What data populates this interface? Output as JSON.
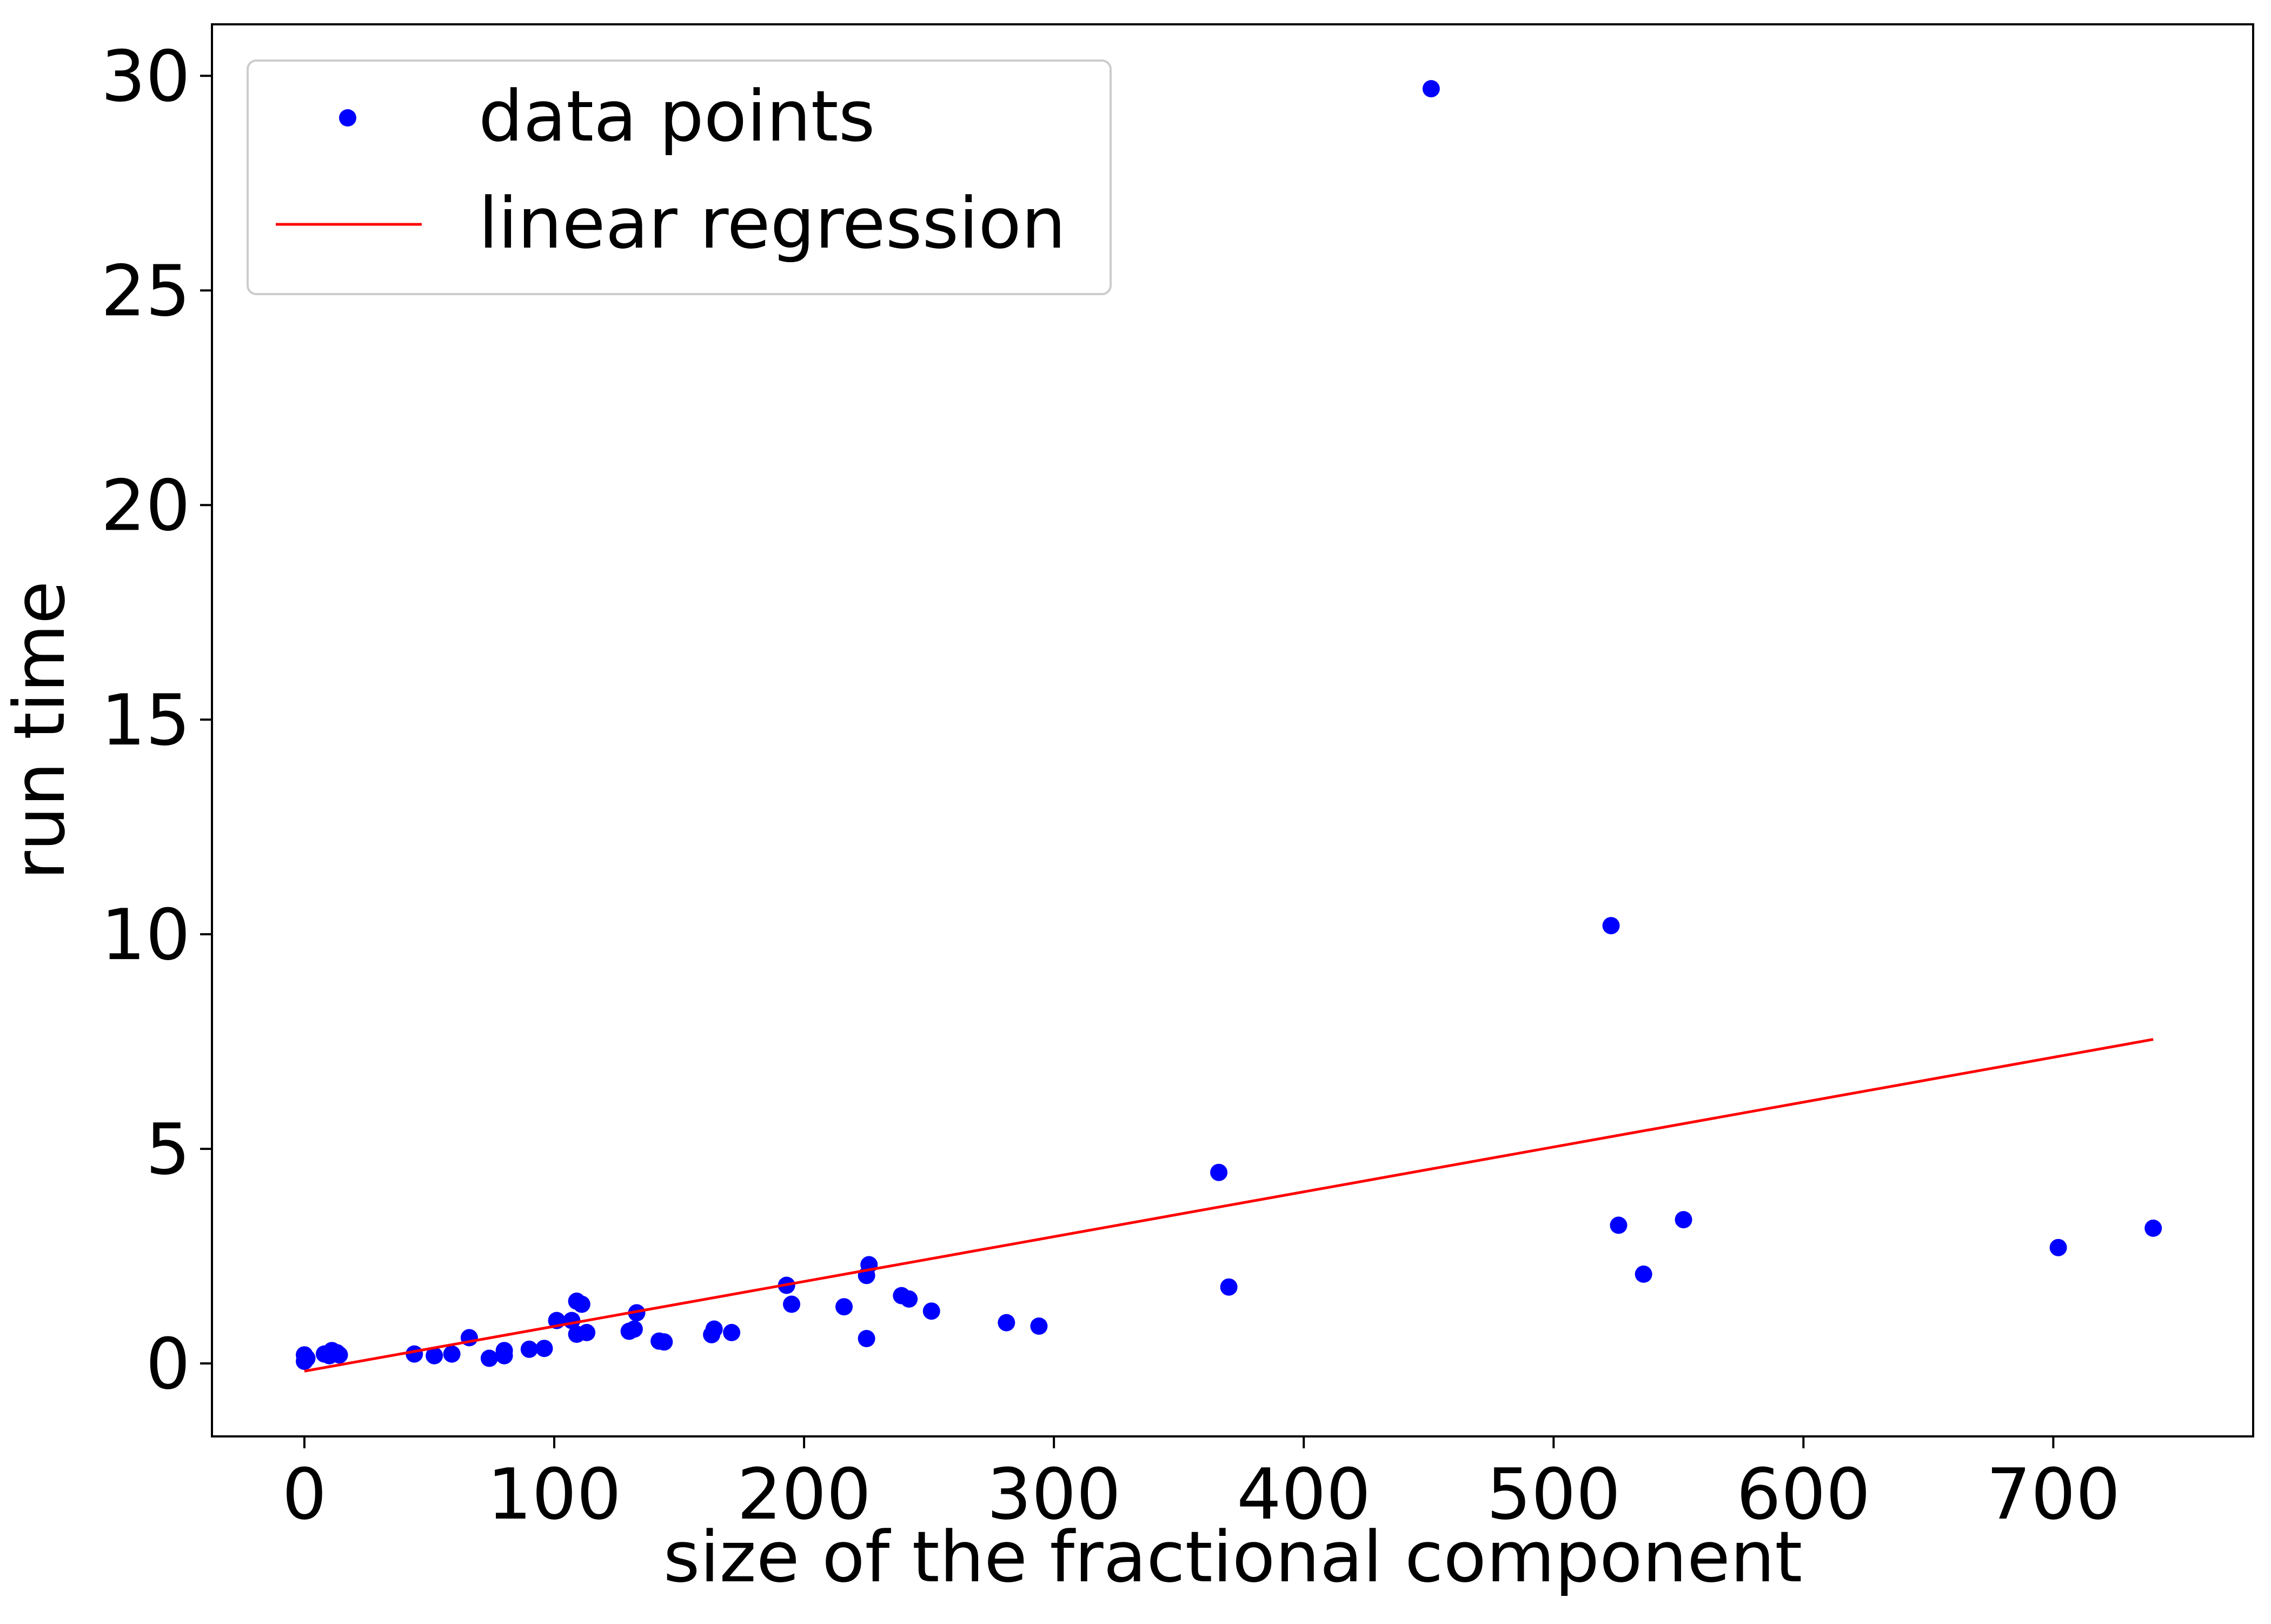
{
  "chart_data": {
    "type": "scatter",
    "xlabel": "size of the fractional component",
    "ylabel": "run time",
    "xlim": [
      -37,
      780
    ],
    "ylim": [
      -1.7,
      31.2
    ],
    "xticks": [
      0,
      100,
      200,
      300,
      400,
      500,
      600,
      700
    ],
    "yticks": [
      0,
      5,
      10,
      15,
      20,
      25,
      30
    ],
    "grid": false,
    "legend_position": "top-left",
    "series": [
      {
        "name": "data points",
        "kind": "scatter",
        "color": "#0000ff",
        "points": [
          [
            0,
            0.2
          ],
          [
            0,
            0.05
          ],
          [
            1,
            0.12
          ],
          [
            8,
            0.22
          ],
          [
            10,
            0.18
          ],
          [
            11,
            0.3
          ],
          [
            13,
            0.25
          ],
          [
            14,
            0.2
          ],
          [
            44,
            0.22
          ],
          [
            52,
            0.18
          ],
          [
            59,
            0.22
          ],
          [
            66,
            0.6
          ],
          [
            74,
            0.12
          ],
          [
            80,
            0.18
          ],
          [
            80,
            0.3
          ],
          [
            90,
            0.33
          ],
          [
            96,
            0.35
          ],
          [
            101,
            1.0
          ],
          [
            107,
            1.0
          ],
          [
            109,
            1.45
          ],
          [
            109,
            0.68
          ],
          [
            111,
            1.38
          ],
          [
            113,
            0.72
          ],
          [
            130,
            0.75
          ],
          [
            132,
            0.8
          ],
          [
            133,
            1.18
          ],
          [
            142,
            0.52
          ],
          [
            144,
            0.5
          ],
          [
            163,
            0.67
          ],
          [
            164,
            0.8
          ],
          [
            171,
            0.72
          ],
          [
            193,
            1.82
          ],
          [
            195,
            1.38
          ],
          [
            216,
            1.32
          ],
          [
            225,
            2.05
          ],
          [
            226,
            2.3
          ],
          [
            225,
            0.58
          ],
          [
            239,
            1.58
          ],
          [
            242,
            1.5
          ],
          [
            251,
            1.22
          ],
          [
            281,
            0.95
          ],
          [
            294,
            0.87
          ],
          [
            366,
            4.45
          ],
          [
            370,
            1.78
          ],
          [
            451,
            29.7
          ],
          [
            523,
            10.2
          ],
          [
            526,
            3.22
          ],
          [
            536,
            2.08
          ],
          [
            552,
            3.35
          ],
          [
            702,
            2.7
          ],
          [
            740,
            3.15
          ]
        ]
      },
      {
        "name": "linear regression",
        "kind": "line",
        "color": "#ff0000",
        "points": [
          [
            0,
            -0.18
          ],
          [
            740,
            7.55
          ]
        ]
      }
    ]
  }
}
